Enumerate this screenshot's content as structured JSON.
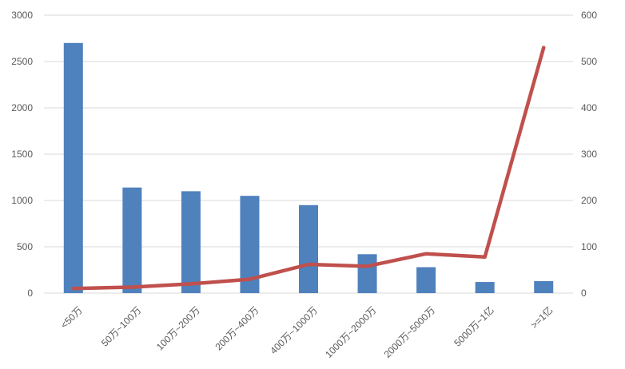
{
  "chart_data": {
    "type": "combo",
    "title": "",
    "subtitle": "",
    "legend_position": "none",
    "grid": true,
    "categories": [
      "<50万",
      "50万~100万",
      "100万~200万",
      "200万~400万",
      "400万~1000万",
      "1000万~2000万",
      "2000万~5000万",
      "5000万~1亿",
      ">=1亿"
    ],
    "series": [
      {
        "name": "count-bars",
        "type": "bar",
        "axis": "left",
        "values": [
          2700,
          1140,
          1100,
          1050,
          950,
          420,
          280,
          120,
          130
        ]
      },
      {
        "name": "trend-line",
        "type": "line",
        "axis": "right",
        "values": [
          10,
          13,
          20,
          30,
          62,
          58,
          85,
          78,
          530
        ]
      }
    ],
    "left_axis": {
      "min": 0,
      "max": 3000,
      "step": 500,
      "tick_labels": [
        "0",
        "500",
        "1000",
        "1500",
        "2000",
        "2500",
        "3000"
      ]
    },
    "right_axis": {
      "min": 0,
      "max": 600,
      "step": 100,
      "tick_labels": [
        "0",
        "100",
        "200",
        "300",
        "400",
        "500",
        "600"
      ]
    }
  },
  "colors": {
    "bar_fill": "#4f81bd",
    "line_stroke": "#c0504d",
    "gridline": "#d9d9d9",
    "axis_line": "#d9d9d9",
    "tick_text": "#595959",
    "background": "#ffffff"
  }
}
